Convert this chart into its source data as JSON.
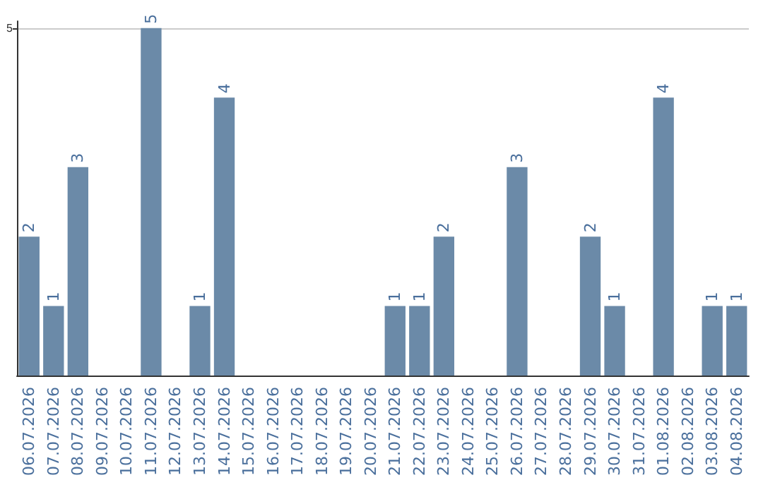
{
  "chart_data": {
    "type": "bar",
    "categories": [
      "06.07.2026",
      "07.07.2026",
      "08.07.2026",
      "09.07.2026",
      "10.07.2026",
      "11.07.2026",
      "12.07.2026",
      "13.07.2026",
      "14.07.2026",
      "15.07.2026",
      "16.07.2026",
      "17.07.2026",
      "18.07.2026",
      "19.07.2026",
      "20.07.2026",
      "21.07.2026",
      "22.07.2026",
      "23.07.2026",
      "24.07.2026",
      "25.07.2026",
      "26.07.2026",
      "27.07.2026",
      "28.07.2026",
      "29.07.2026",
      "30.07.2026",
      "31.07.2026",
      "01.08.2026",
      "02.08.2026",
      "03.08.2026",
      "04.08.2026"
    ],
    "values": [
      2,
      1,
      3,
      0,
      0,
      5,
      0,
      1,
      4,
      0,
      0,
      0,
      0,
      0,
      0,
      1,
      1,
      2,
      0,
      0,
      3,
      0,
      0,
      2,
      1,
      0,
      4,
      0,
      1,
      1
    ],
    "value_labels": [
      "2",
      "1",
      "3",
      null,
      null,
      "5",
      null,
      "1",
      "4",
      null,
      null,
      null,
      null,
      null,
      null,
      "1",
      "1",
      "2",
      null,
      null,
      "3",
      null,
      null,
      "2",
      "1",
      null,
      "4",
      null,
      "1",
      "1"
    ],
    "color": "#6b8aa8",
    "ylim": [
      0,
      5.1
    ],
    "yticks": [
      5
    ],
    "grid": "y"
  }
}
